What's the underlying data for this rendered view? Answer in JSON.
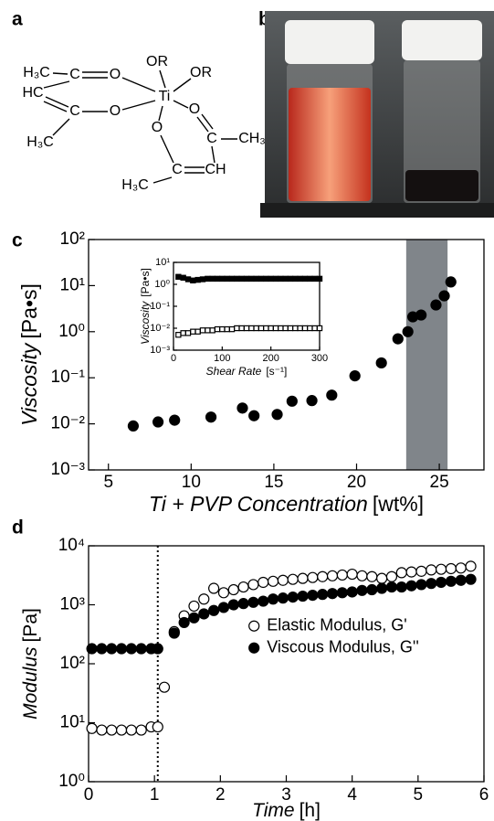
{
  "panels": [
    "a",
    "b",
    "c",
    "d"
  ],
  "structure": {
    "labels": [
      "H₃C",
      "C",
      "O",
      "OR",
      "OR",
      "HC",
      "Ti",
      "C",
      "O",
      "O",
      "O",
      "H₃C",
      "C",
      "CH₃",
      "C",
      "CH",
      "H₃C"
    ]
  },
  "chart_data": [
    {
      "type": "scatter",
      "log_scale": true,
      "xlabel": "Ti + PVP Concentration",
      "xunit": "[wt%]",
      "ylabel": "Viscosity",
      "yunit": "[Pa•s]",
      "xlim": [
        3.8,
        27.7
      ],
      "xticks": [
        5,
        10,
        15,
        20,
        25
      ],
      "ylim": [
        0.001,
        100
      ],
      "yticks": [
        {
          "value": 0.001,
          "label": "10⁻³"
        },
        {
          "value": 0.01,
          "label": "10⁻²"
        },
        {
          "value": 0.1,
          "label": "10⁻¹"
        },
        {
          "value": 1,
          "label": "10⁰"
        },
        {
          "value": 10,
          "label": "10¹"
        },
        {
          "value": 100,
          "label": "10²"
        }
      ],
      "shaded_region": [
        23,
        25.5
      ],
      "shaded_color": "#80858a",
      "series": [
        {
          "marker": "circle",
          "filled": true,
          "color": "#000000",
          "x": [
            6.5,
            8,
            9,
            11.2,
            13.1,
            13.8,
            15.2,
            16.1,
            17.3,
            18.5,
            19.9,
            21.5,
            22.5,
            23.1,
            23.4,
            23.9,
            24.8,
            25.3,
            25.7
          ],
          "values": [
            0.009,
            0.011,
            0.012,
            0.014,
            0.022,
            0.015,
            0.016,
            0.031,
            0.032,
            0.042,
            0.11,
            0.21,
            0.7,
            1.0,
            2.1,
            2.3,
            3.8,
            6.0,
            12
          ]
        }
      ]
    },
    {
      "type": "scatter",
      "log_scale": true,
      "xlabel": "Shear Rate",
      "xunit": "[s⁻¹]",
      "ylabel": "Viscosity",
      "yunit": "[Pa•s]",
      "xlim": [
        0,
        300
      ],
      "xticks": [
        0,
        100,
        200,
        300
      ],
      "ylim": [
        0.001,
        10
      ],
      "yticks": [
        {
          "value": 0.001,
          "label": "10⁻³"
        },
        {
          "value": 0.01,
          "label": "10⁻²"
        },
        {
          "value": 0.1,
          "label": "10⁻¹"
        },
        {
          "value": 1,
          "label": "10⁰"
        },
        {
          "value": 10,
          "label": "10¹"
        }
      ],
      "series": [
        {
          "marker": "square",
          "filled": true,
          "color": "#000000",
          "x": [
            10,
            20,
            30,
            40,
            50,
            60,
            70,
            80,
            90,
            100,
            110,
            120,
            130,
            140,
            150,
            160,
            170,
            180,
            190,
            200,
            210,
            220,
            230,
            240,
            250,
            260,
            270,
            280,
            290,
            300
          ],
          "values": [
            2.2,
            2.0,
            1.7,
            1.5,
            1.6,
            1.7,
            1.8,
            1.8,
            1.8,
            1.8,
            1.8,
            1.8,
            1.8,
            1.8,
            1.8,
            1.8,
            1.8,
            1.8,
            1.8,
            1.8,
            1.8,
            1.8,
            1.8,
            1.8,
            1.8,
            1.8,
            1.8,
            1.8,
            1.8,
            1.8
          ]
        },
        {
          "marker": "square",
          "filled": false,
          "color": "#000000",
          "x": [
            10,
            20,
            30,
            40,
            50,
            60,
            70,
            80,
            90,
            100,
            110,
            120,
            130,
            140,
            150,
            160,
            170,
            180,
            190,
            200,
            210,
            220,
            230,
            240,
            250,
            260,
            270,
            280,
            290,
            300
          ],
          "values": [
            0.005,
            0.006,
            0.006,
            0.007,
            0.007,
            0.008,
            0.008,
            0.008,
            0.009,
            0.009,
            0.009,
            0.009,
            0.01,
            0.01,
            0.01,
            0.01,
            0.01,
            0.01,
            0.01,
            0.01,
            0.01,
            0.01,
            0.01,
            0.01,
            0.01,
            0.01,
            0.01,
            0.01,
            0.01,
            0.01
          ]
        }
      ]
    },
    {
      "type": "scatter",
      "log_scale": true,
      "xlabel": "Time",
      "xunit": "[h]",
      "ylabel": "Modulus",
      "yunit": "[Pa]",
      "xlim": [
        0,
        6
      ],
      "xticks": [
        0,
        1,
        2,
        3,
        4,
        5,
        6
      ],
      "ylim": [
        1,
        10000
      ],
      "yticks": [
        {
          "value": 1,
          "label": "10⁰"
        },
        {
          "value": 10,
          "label": "10¹"
        },
        {
          "value": 100,
          "label": "10²"
        },
        {
          "value": 1000,
          "label": "10³"
        },
        {
          "value": 10000,
          "label": "10⁴"
        }
      ],
      "vline": 1.05,
      "legend": "center right",
      "series": [
        {
          "name": "Elastic Modulus, G'",
          "marker": "circle",
          "filled": false,
          "color": "#000000",
          "x": [
            0.05,
            0.2,
            0.35,
            0.5,
            0.65,
            0.8,
            0.95,
            1.05,
            1.15,
            1.3,
            1.45,
            1.6,
            1.75,
            1.9,
            2.05,
            2.2,
            2.35,
            2.5,
            2.65,
            2.8,
            2.95,
            3.1,
            3.25,
            3.4,
            3.55,
            3.7,
            3.85,
            4.0,
            4.15,
            4.3,
            4.45,
            4.6,
            4.75,
            4.9,
            5.05,
            5.2,
            5.35,
            5.5,
            5.65,
            5.8
          ],
          "values": [
            8,
            7.5,
            7.5,
            7.5,
            7.5,
            7.5,
            8.5,
            8.5,
            40,
            350,
            650,
            950,
            1250,
            1900,
            1600,
            1800,
            2000,
            2200,
            2400,
            2500,
            2600,
            2700,
            2800,
            2900,
            3000,
            3100,
            3200,
            3300,
            3100,
            3000,
            2800,
            3000,
            3500,
            3600,
            3700,
            3900,
            4000,
            4100,
            4200,
            4500
          ]
        },
        {
          "name": "Viscous Modulus, G''",
          "marker": "circle",
          "filled": true,
          "color": "#000000",
          "x": [
            0.05,
            0.2,
            0.35,
            0.5,
            0.65,
            0.8,
            0.95,
            1.05,
            1.3,
            1.45,
            1.6,
            1.75,
            1.9,
            2.05,
            2.2,
            2.35,
            2.5,
            2.65,
            2.8,
            2.95,
            3.1,
            3.25,
            3.4,
            3.55,
            3.7,
            3.85,
            4.0,
            4.15,
            4.3,
            4.45,
            4.6,
            4.75,
            4.9,
            5.05,
            5.2,
            5.35,
            5.5,
            5.65,
            5.8
          ],
          "values": [
            180,
            180,
            180,
            180,
            180,
            180,
            180,
            180,
            330,
            500,
            600,
            700,
            800,
            900,
            1000,
            1050,
            1100,
            1150,
            1250,
            1300,
            1350,
            1400,
            1450,
            1500,
            1550,
            1600,
            1650,
            1750,
            1800,
            1900,
            2000,
            2000,
            2100,
            2200,
            2300,
            2400,
            2500,
            2600,
            2700
          ]
        }
      ]
    }
  ]
}
